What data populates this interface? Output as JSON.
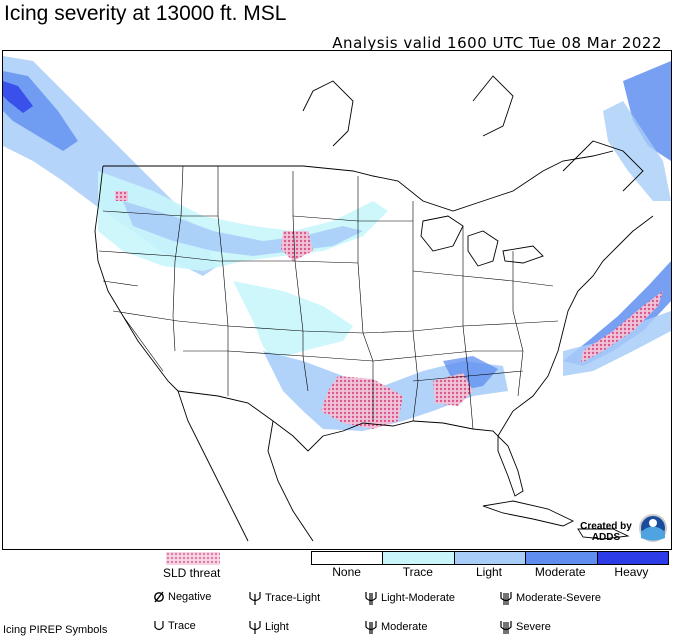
{
  "header": {
    "title": "Icing severity at 13000 ft. MSL",
    "subtitle": "Analysis valid 1600 UTC Tue 08 Mar 2022"
  },
  "badge": {
    "line1": "Created by",
    "line2": "ADDS"
  },
  "legend": {
    "sld_label": "SLD threat",
    "sld_color": "#e07aa6",
    "categories": [
      {
        "label": "None",
        "color": "#ffffff"
      },
      {
        "label": "Trace",
        "color": "#c8f6fb"
      },
      {
        "label": "Light",
        "color": "#a8cdf8"
      },
      {
        "label": "Moderate",
        "color": "#5f8ef0"
      },
      {
        "label": "Heavy",
        "color": "#2c3de8"
      }
    ]
  },
  "pirep": {
    "title": "Icing PIREP Symbols",
    "symbols": [
      {
        "label": "Negative",
        "icon": "negative-icon"
      },
      {
        "label": "Trace-Light",
        "icon": "trace-light-icon"
      },
      {
        "label": "Light-Moderate",
        "icon": "light-moderate-icon"
      },
      {
        "label": "Moderate-Severe",
        "icon": "moderate-severe-icon"
      },
      {
        "label": "Trace",
        "icon": "trace-icon"
      },
      {
        "label": "Light",
        "icon": "light-icon"
      },
      {
        "label": "Moderate",
        "icon": "moderate-icon"
      },
      {
        "label": "Severe",
        "icon": "severe-icon"
      }
    ]
  }
}
